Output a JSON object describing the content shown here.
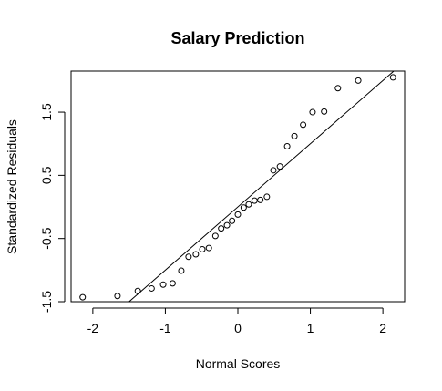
{
  "chart_data": {
    "type": "scatter",
    "title": "Salary Prediction",
    "xlabel": "Normal Scores",
    "ylabel": "Standardized Residuals",
    "xlim": [
      -2.3,
      2.3
    ],
    "ylim": [
      -1.5,
      2.15
    ],
    "x_ticks": [
      -2,
      -1,
      0,
      1,
      2
    ],
    "x_tick_labels": [
      "-2",
      "-1",
      "0",
      "1",
      "2"
    ],
    "y_ticks": [
      -1.5,
      -0.5,
      0.5,
      1.5
    ],
    "y_tick_labels": [
      "-1.5",
      "-0.5",
      "0.5",
      "1.5"
    ],
    "grid": false,
    "series": [
      {
        "points": [
          [
            -2.14,
            -1.43
          ],
          [
            -1.66,
            -1.41
          ],
          [
            -1.38,
            -1.33
          ],
          [
            -1.19,
            -1.29
          ],
          [
            -1.03,
            -1.23
          ],
          [
            -0.9,
            -1.21
          ],
          [
            -0.78,
            -1.01
          ],
          [
            -0.68,
            -0.79
          ],
          [
            -0.58,
            -0.75
          ],
          [
            -0.49,
            -0.67
          ],
          [
            -0.4,
            -0.65
          ],
          [
            -0.31,
            -0.46
          ],
          [
            -0.23,
            -0.34
          ],
          [
            -0.15,
            -0.29
          ],
          [
            -0.08,
            -0.22
          ],
          [
            0.0,
            -0.12
          ],
          [
            0.08,
            -0.01
          ],
          [
            0.15,
            0.04
          ],
          [
            0.23,
            0.1
          ],
          [
            0.31,
            0.11
          ],
          [
            0.4,
            0.16
          ],
          [
            0.49,
            0.58
          ],
          [
            0.58,
            0.64
          ],
          [
            0.68,
            0.96
          ],
          [
            0.78,
            1.12
          ],
          [
            0.9,
            1.3
          ],
          [
            1.03,
            1.5
          ],
          [
            1.19,
            1.51
          ],
          [
            1.38,
            1.88
          ],
          [
            1.66,
            2.0
          ],
          [
            2.14,
            2.05
          ]
        ]
      }
    ],
    "reference_line": {
      "intercept": 0.0,
      "slope": 1.0
    }
  }
}
